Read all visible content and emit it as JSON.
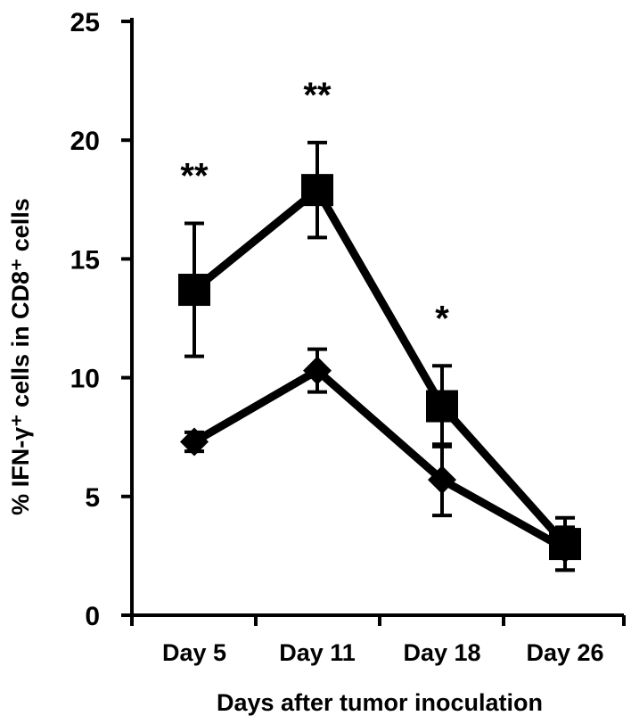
{
  "chart_data": {
    "type": "line",
    "xlabel": "Days after tumor inoculation",
    "ylabel": "% IFN-γ⁺ cells in CD8⁺ cells",
    "ylim": [
      0,
      25
    ],
    "yticks": [
      0,
      5,
      10,
      15,
      20,
      25
    ],
    "categories": [
      "Day 5",
      "Day 11",
      "Day 18",
      "Day 26"
    ],
    "grid": false,
    "series": [
      {
        "marker": "square",
        "values": [
          13.7,
          17.9,
          8.8,
          3.0
        ],
        "errors": [
          2.8,
          2.0,
          1.7,
          1.1
        ]
      },
      {
        "marker": "diamond",
        "values": [
          7.3,
          10.3,
          5.7,
          2.8
        ],
        "errors": [
          0.4,
          0.9,
          1.5,
          0.9
        ]
      }
    ],
    "annotations": [
      "**",
      "**",
      "*",
      ""
    ]
  }
}
